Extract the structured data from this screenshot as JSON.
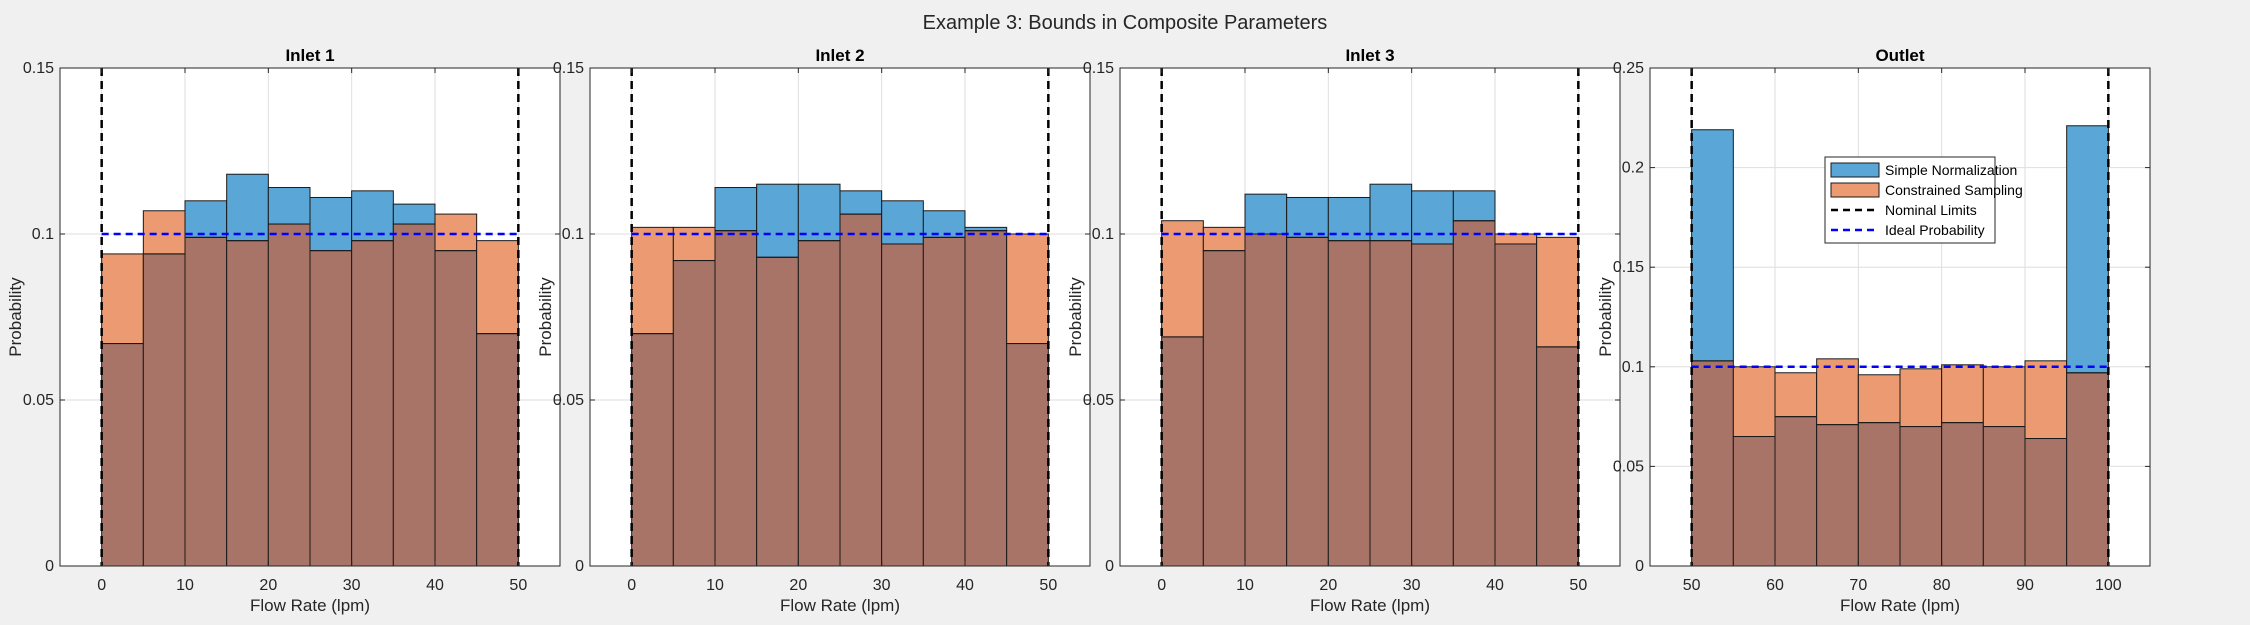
{
  "figure": {
    "title": "Example 3: Bounds in Composite Parameters"
  },
  "colors": {
    "background": "#f0f0f0",
    "axes_bg": "#ffffff",
    "simple": "#5aa6d6",
    "constrained": "#ec9a72",
    "overlap": "#a97468",
    "nominal": "#000000",
    "ideal": "#0000ff",
    "grid": "#dedede"
  },
  "legend": {
    "simple": "Simple Normalization",
    "constrained": "Constrained Sampling",
    "nominal": "Nominal Limits",
    "ideal": "Ideal Probability"
  },
  "chart_data": [
    {
      "type": "bar",
      "title": "Inlet 1",
      "xlabel": "Flow Rate (lpm)",
      "ylabel": "Probability",
      "xlim": [
        -5,
        55
      ],
      "ylim": [
        0,
        0.15
      ],
      "xticks": [
        0,
        10,
        20,
        30,
        40,
        50
      ],
      "yticks": [
        0,
        0.05,
        0.1,
        0.15
      ],
      "ytick_labels": [
        "0",
        "0.05",
        "0.1",
        "0.15"
      ],
      "grid": true,
      "bin_edges": [
        0,
        5,
        10,
        15,
        20,
        25,
        30,
        35,
        40,
        45,
        50
      ],
      "series": [
        {
          "name": "Simple Normalization",
          "values": [
            0.067,
            0.094,
            0.11,
            0.118,
            0.114,
            0.111,
            0.113,
            0.109,
            0.095,
            0.07
          ]
        },
        {
          "name": "Constrained Sampling",
          "values": [
            0.094,
            0.107,
            0.099,
            0.098,
            0.103,
            0.095,
            0.098,
            0.103,
            0.106,
            0.098
          ]
        }
      ],
      "nominal_limits": [
        0,
        50
      ],
      "ideal_probability": 0.1
    },
    {
      "type": "bar",
      "title": "Inlet 2",
      "xlabel": "Flow Rate (lpm)",
      "ylabel": "Probability",
      "xlim": [
        -5,
        55
      ],
      "ylim": [
        0,
        0.15
      ],
      "xticks": [
        0,
        10,
        20,
        30,
        40,
        50
      ],
      "yticks": [
        0,
        0.05,
        0.1,
        0.15
      ],
      "ytick_labels": [
        "0",
        "0.05",
        "0.1",
        "0.15"
      ],
      "grid": true,
      "bin_edges": [
        0,
        5,
        10,
        15,
        20,
        25,
        30,
        35,
        40,
        45,
        50
      ],
      "series": [
        {
          "name": "Simple Normalization",
          "values": [
            0.07,
            0.092,
            0.114,
            0.115,
            0.115,
            0.113,
            0.11,
            0.107,
            0.102,
            0.067
          ]
        },
        {
          "name": "Constrained Sampling",
          "values": [
            0.102,
            0.102,
            0.101,
            0.093,
            0.098,
            0.106,
            0.097,
            0.099,
            0.101,
            0.1
          ]
        }
      ],
      "nominal_limits": [
        0,
        50
      ],
      "ideal_probability": 0.1
    },
    {
      "type": "bar",
      "title": "Inlet 3",
      "xlabel": "Flow Rate (lpm)",
      "ylabel": "Probability",
      "xlim": [
        -5,
        55
      ],
      "ylim": [
        0,
        0.15
      ],
      "xticks": [
        0,
        10,
        20,
        30,
        40,
        50
      ],
      "yticks": [
        0,
        0.05,
        0.1,
        0.15
      ],
      "ytick_labels": [
        "0",
        "0.05",
        "0.1",
        "0.15"
      ],
      "grid": true,
      "bin_edges": [
        0,
        5,
        10,
        15,
        20,
        25,
        30,
        35,
        40,
        45,
        50
      ],
      "series": [
        {
          "name": "Simple Normalization",
          "values": [
            0.069,
            0.095,
            0.112,
            0.111,
            0.111,
            0.115,
            0.113,
            0.113,
            0.097,
            0.066
          ]
        },
        {
          "name": "Constrained Sampling",
          "values": [
            0.104,
            0.102,
            0.1,
            0.099,
            0.098,
            0.098,
            0.097,
            0.104,
            0.1,
            0.099
          ]
        }
      ],
      "nominal_limits": [
        0,
        50
      ],
      "ideal_probability": 0.1
    },
    {
      "type": "bar",
      "title": "Outlet",
      "xlabel": "Flow Rate (lpm)",
      "ylabel": "Probability",
      "xlim": [
        45,
        105
      ],
      "ylim": [
        0,
        0.25
      ],
      "xticks": [
        50,
        60,
        70,
        80,
        90,
        100
      ],
      "yticks": [
        0,
        0.05,
        0.1,
        0.15,
        0.2,
        0.25
      ],
      "ytick_labels": [
        "0",
        "0.05",
        "0.1",
        "0.15",
        "0.2",
        "0.25"
      ],
      "grid": true,
      "legend": true,
      "bin_edges": [
        50,
        55,
        60,
        65,
        70,
        75,
        80,
        85,
        90,
        95,
        100
      ],
      "series": [
        {
          "name": "Simple Normalization",
          "values": [
            0.219,
            0.065,
            0.075,
            0.071,
            0.072,
            0.07,
            0.072,
            0.07,
            0.064,
            0.221
          ]
        },
        {
          "name": "Constrained Sampling",
          "values": [
            0.103,
            0.1,
            0.097,
            0.104,
            0.096,
            0.099,
            0.101,
            0.1,
            0.103,
            0.097
          ]
        }
      ],
      "nominal_limits": [
        50,
        100
      ],
      "ideal_probability": 0.1
    }
  ]
}
